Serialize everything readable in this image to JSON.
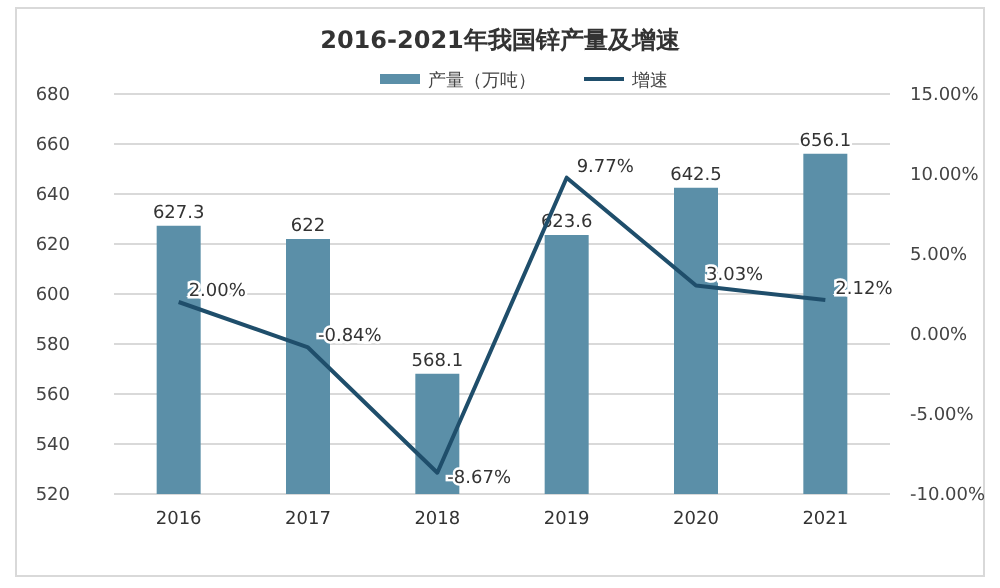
{
  "chart_data": {
    "type": "bar",
    "title": "2016-2021年我国锌产量及增速",
    "categories": [
      "2016",
      "2017",
      "2018",
      "2019",
      "2020",
      "2021"
    ],
    "series": [
      {
        "name": "产量（万吨）",
        "color": "#5b8fa8",
        "values": [
          627.3,
          622,
          568.1,
          623.6,
          642.5,
          656.1
        ],
        "value_labels": [
          "627.3",
          "622",
          "568.1",
          "623.6",
          "642.5",
          "656.1"
        ]
      },
      {
        "name": "增速",
        "type": "line",
        "axis": "y2",
        "color": "#1f4e6b",
        "values": [
          2.0,
          -0.84,
          -8.67,
          9.77,
          3.03,
          2.12
        ],
        "value_labels": [
          "2.00%",
          "-0.84%",
          "-8.67%",
          "9.77%",
          "3.03%",
          "2.12%"
        ]
      }
    ],
    "ylim": [
      520,
      680
    ],
    "yticks": [
      520,
      540,
      560,
      580,
      600,
      620,
      640,
      660,
      680
    ],
    "y2lim": [
      -10,
      15
    ],
    "y2ticks": [
      {
        "value": -10,
        "label": "-10.00%"
      },
      {
        "value": -5,
        "label": "-5.00%"
      },
      {
        "value": 0,
        "label": "0.00%"
      },
      {
        "value": 5,
        "label": "5.00%"
      },
      {
        "value": 10,
        "label": "10.00%"
      },
      {
        "value": 15,
        "label": "15.00%"
      }
    ],
    "grid": "y",
    "legend": "top"
  }
}
